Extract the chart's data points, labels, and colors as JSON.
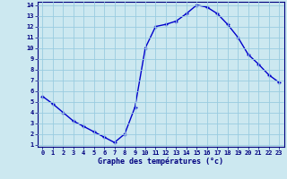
{
  "hours": [
    0,
    1,
    2,
    3,
    4,
    5,
    6,
    7,
    8,
    9,
    10,
    11,
    12,
    13,
    14,
    15,
    16,
    17,
    18,
    19,
    20,
    21,
    22,
    23
  ],
  "temps": [
    5.5,
    4.8,
    4.0,
    3.2,
    2.7,
    2.2,
    1.7,
    1.2,
    2.0,
    4.5,
    10.0,
    12.0,
    12.2,
    12.5,
    13.2,
    14.0,
    13.8,
    13.2,
    12.2,
    11.0,
    9.4,
    8.5,
    7.5,
    6.8
  ],
  "xlim": [
    -0.5,
    23.5
  ],
  "ylim_min": 0.8,
  "ylim_max": 14.3,
  "yticks": [
    1,
    2,
    3,
    4,
    5,
    6,
    7,
    8,
    9,
    10,
    11,
    12,
    13,
    14
  ],
  "xticks": [
    0,
    1,
    2,
    3,
    4,
    5,
    6,
    7,
    8,
    9,
    10,
    11,
    12,
    13,
    14,
    15,
    16,
    17,
    18,
    19,
    20,
    21,
    22,
    23
  ],
  "xlabel": "Graphe des températures (°c)",
  "line_color": "#0000cc",
  "marker": "+",
  "bg_color": "#cce8f0",
  "grid_color": "#99cce0",
  "axis_label_color": "#000080",
  "tick_label_color": "#000080"
}
